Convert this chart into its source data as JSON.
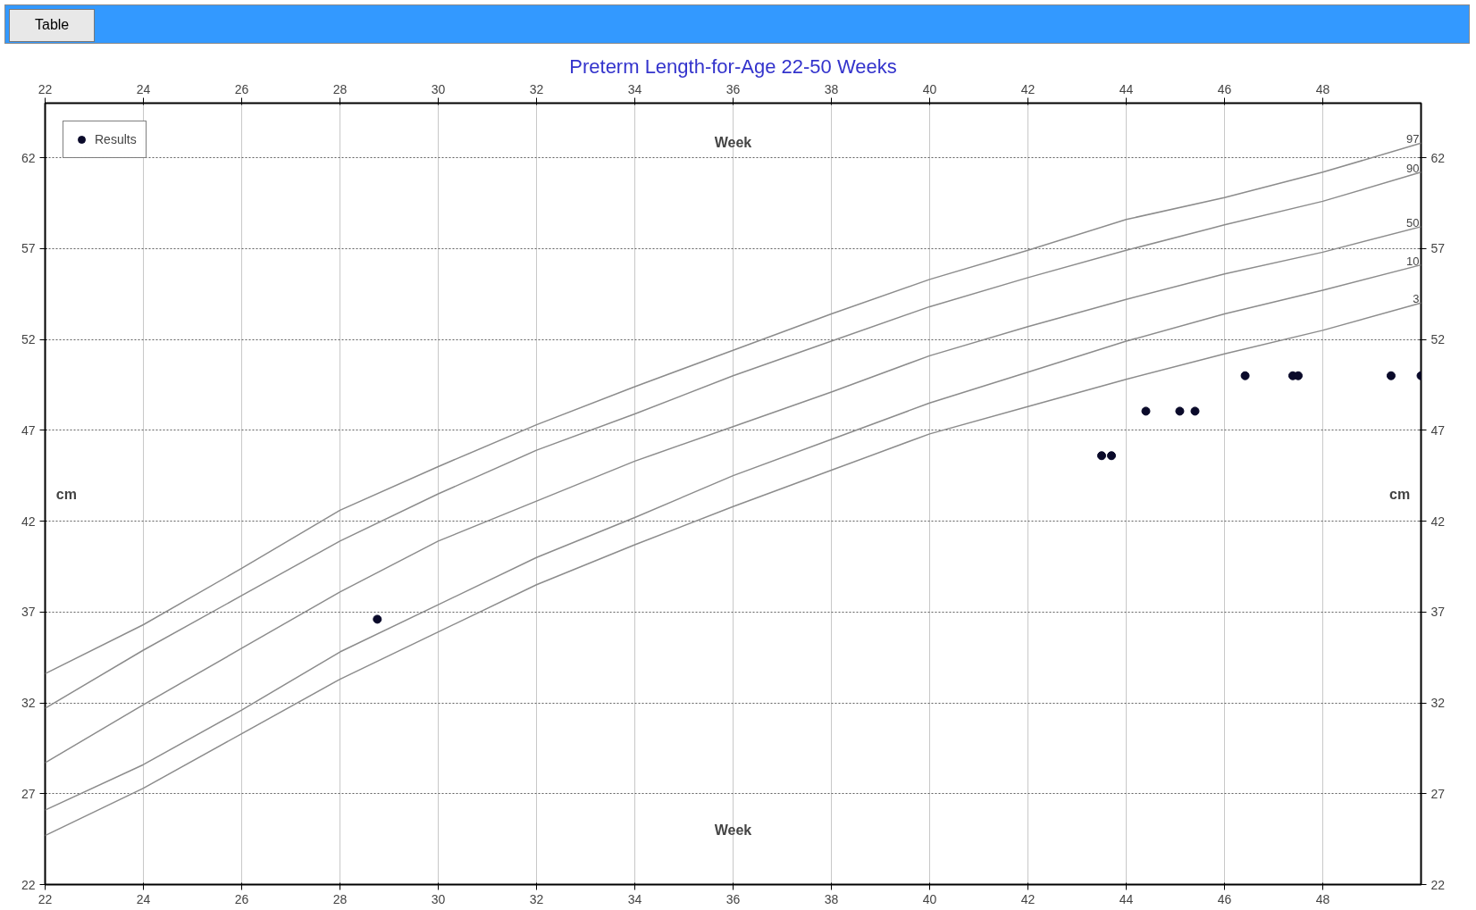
{
  "chart_data": {
    "type": "line",
    "title": "Preterm Length-for-Age 22-50 Weeks",
    "xlabel": "Week",
    "x2label": "Week",
    "ylabel": "cm",
    "y2label": "cm",
    "annotations": [
      "Table"
    ],
    "x": [
      22,
      24,
      26,
      28,
      30,
      32,
      34,
      36,
      38,
      40,
      42,
      44,
      46,
      48,
      50
    ],
    "xlim": [
      22,
      50
    ],
    "xticks": [
      22,
      24,
      26,
      28,
      30,
      32,
      34,
      36,
      38,
      40,
      42,
      44,
      46,
      48
    ],
    "x2lim": [
      22,
      50
    ],
    "x2ticks": [
      22,
      24,
      26,
      28,
      30,
      32,
      34,
      36,
      38,
      40,
      42,
      44,
      46,
      48
    ],
    "ylim": [
      22,
      65
    ],
    "yticks": [
      22,
      27,
      32,
      37,
      42,
      47,
      52,
      57,
      62
    ],
    "y2lim": [
      22,
      65
    ],
    "y2ticks": [
      22,
      27,
      32,
      37,
      42,
      47,
      52,
      57,
      62
    ],
    "grid": true,
    "legend": "top left",
    "line_style": "solid",
    "series": [
      {
        "name": "97",
        "color": "#8c8c8c",
        "values": [
          33.6,
          36.3,
          39.4,
          42.6,
          45.0,
          47.3,
          49.4,
          51.4,
          53.4,
          55.3,
          56.9,
          58.6,
          59.8,
          61.2,
          62.8
        ]
      },
      {
        "name": "90",
        "color": "#8c8c8c",
        "values": [
          31.7,
          34.9,
          37.9,
          40.9,
          43.5,
          45.9,
          47.9,
          50.0,
          51.9,
          53.8,
          55.4,
          56.9,
          58.3,
          59.6,
          61.2
        ]
      },
      {
        "name": "50",
        "color": "#8c8c8c",
        "values": [
          28.7,
          31.9,
          35.0,
          38.1,
          40.9,
          43.1,
          45.3,
          47.2,
          49.1,
          51.1,
          52.7,
          54.2,
          55.6,
          56.8,
          58.2
        ]
      },
      {
        "name": "10",
        "color": "#8c8c8c",
        "values": [
          26.1,
          28.6,
          31.6,
          34.8,
          37.4,
          40.0,
          42.2,
          44.5,
          46.5,
          48.5,
          50.2,
          51.9,
          53.4,
          54.7,
          56.1
        ]
      },
      {
        "name": "3",
        "color": "#8c8c8c",
        "values": [
          24.7,
          27.3,
          30.3,
          33.3,
          35.9,
          38.5,
          40.7,
          42.8,
          44.8,
          46.8,
          48.3,
          49.8,
          51.2,
          52.5,
          54.0
        ]
      },
      {
        "name": "Results",
        "type": "scatter",
        "marker": "circle",
        "color": "#0a0a2a",
        "x": [
          28.76,
          43.5,
          43.7,
          44.4,
          45.09,
          45.4,
          46.42,
          47.39,
          47.5,
          49.39,
          50.0
        ],
        "values": [
          36.6,
          45.6,
          45.6,
          48.05,
          48.05,
          48.05,
          50.0,
          50.0,
          50.0,
          50.0,
          50.0
        ]
      }
    ]
  }
}
